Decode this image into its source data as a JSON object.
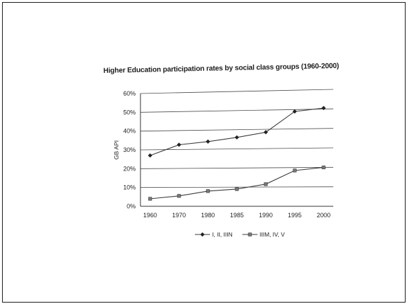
{
  "chart_data": {
    "type": "line",
    "title": "Higher Education participation rates by social class groups (1960-2000)",
    "ylabel": "GB API",
    "xlabel": "",
    "categories": [
      "1960",
      "1970",
      "1980",
      "1985",
      "1990",
      "1995",
      "2000"
    ],
    "yticks": [
      "0%",
      "10%",
      "20%",
      "30%",
      "40%",
      "50%",
      "60%"
    ],
    "ylim": [
      0,
      60
    ],
    "grid": true,
    "legend_position": "bottom",
    "series": [
      {
        "name": "I, II, IIIN",
        "marker": "diamond",
        "values": [
          27,
          32.5,
          34,
          36,
          38.5,
          49,
          50.5
        ]
      },
      {
        "name": "IIIM, IV, V",
        "marker": "square",
        "values": [
          4,
          5.5,
          8,
          9,
          11.5,
          18.5,
          20
        ]
      }
    ],
    "colors": {
      "line": "#3a3a3a",
      "grid": "#4a4a4a",
      "text": "#222222"
    }
  }
}
